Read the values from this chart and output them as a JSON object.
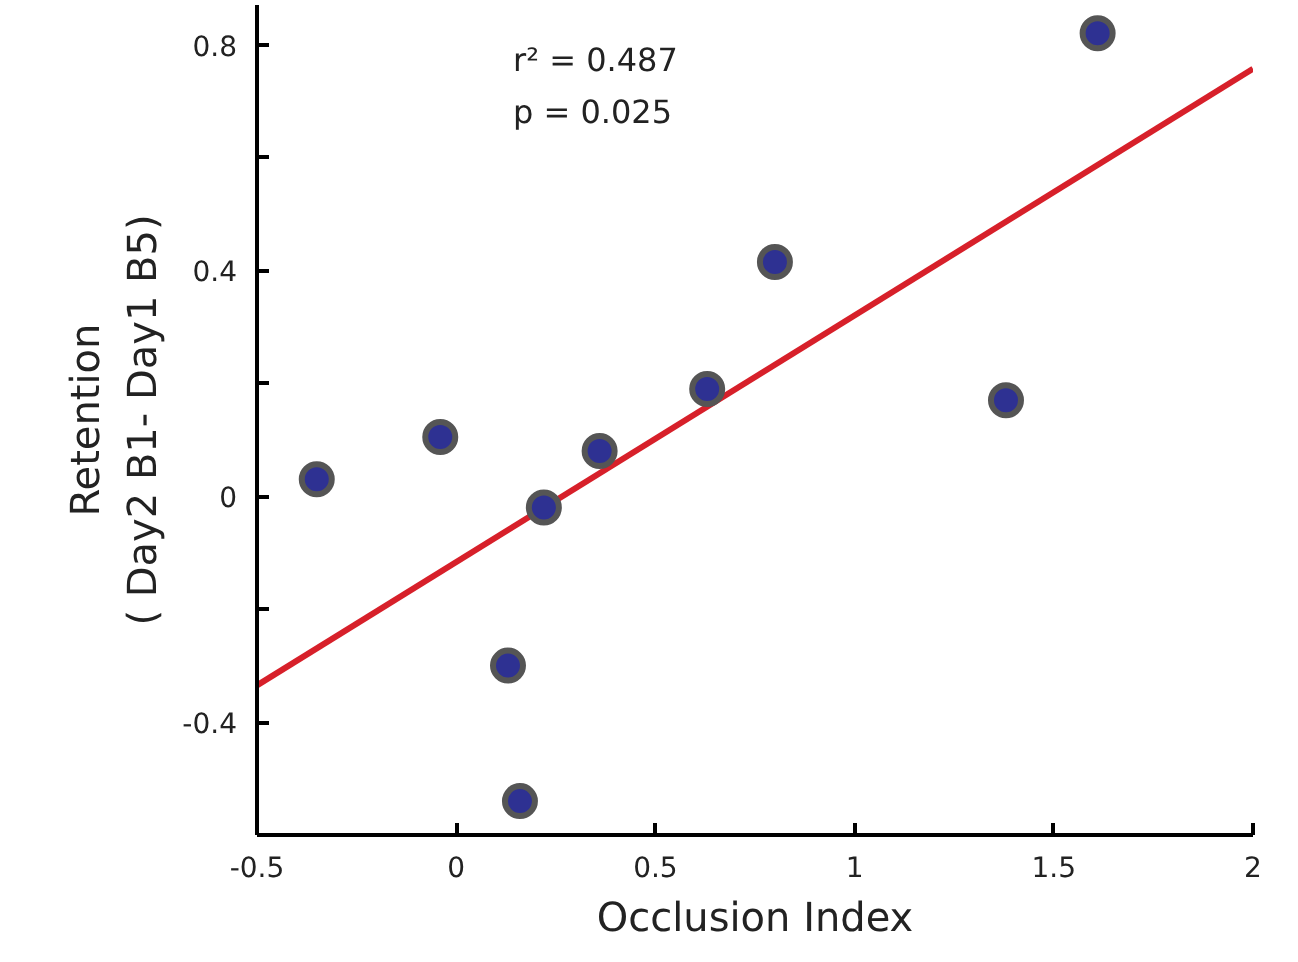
{
  "chart_data": {
    "type": "scatter",
    "xlabel": "Occlusion Index",
    "ylabel": "Retention\n( Day2 B1- Day1 B5)",
    "annotations": [
      "r² = 0.487",
      "p = 0.025"
    ],
    "xlim": [
      -0.5,
      2
    ],
    "ylim": [
      -0.6,
      0.87
    ],
    "xticks": [
      -0.5,
      0,
      0.5,
      1,
      1.5,
      2
    ],
    "yticks": [
      {
        "value": -0.4,
        "label": "-0.4"
      },
      {
        "value": -0.2,
        "label": null
      },
      {
        "value": 0,
        "label": "0"
      },
      {
        "value": 0.2,
        "label": null
      },
      {
        "value": 0.4,
        "label": "0.4"
      },
      {
        "value": 0.6,
        "label": null
      },
      {
        "value": 0.8,
        "label": "0.8"
      }
    ],
    "grid": false,
    "series": [
      {
        "marker": "circle",
        "color": "#2e3192",
        "x": [
          -0.35,
          -0.04,
          0.22,
          0.13,
          0.16,
          0.36,
          0.63,
          0.8,
          1.38,
          1.61
        ],
        "values": [
          0.03,
          0.105,
          -0.02,
          -0.3,
          -0.54,
          0.08,
          0.19,
          0.415,
          0.17,
          0.82
        ]
      },
      {
        "type": "line",
        "color": "#d7202a",
        "x": [
          -0.5,
          2
        ],
        "values": [
          -0.335,
          0.757
        ]
      }
    ]
  }
}
